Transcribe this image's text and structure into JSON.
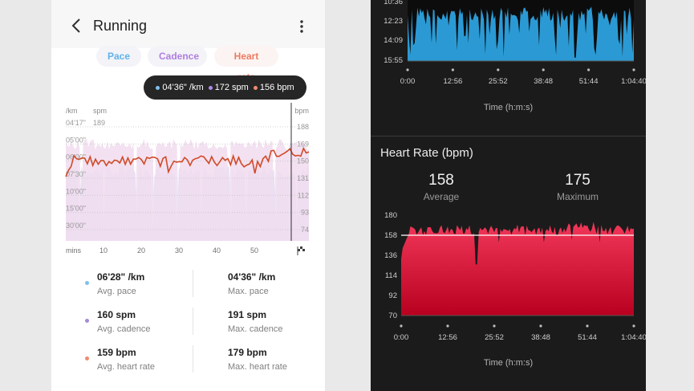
{
  "left": {
    "title": "Running",
    "tabs": {
      "pace": "Pace",
      "cadence": "Cadence",
      "heart_rate": "Heart rate"
    },
    "tooltip": {
      "pace": "04'36\" /km",
      "cadence": "172 spm",
      "heart_rate": "156 bpm"
    },
    "chart": {
      "left_axis_title": "/km",
      "mid_axis_title": "spm",
      "right_axis_title": "bpm",
      "pace_ticks": [
        "04'17\"",
        "05'00\"",
        "06'00\"",
        "07'30\"",
        "10'00\"",
        "15'00\"",
        "30'00\""
      ],
      "cadence_ticks": [
        "189"
      ],
      "hr_ticks": [
        "188",
        "169",
        "150",
        "131",
        "112",
        "93",
        "74"
      ],
      "x_unit": "mins",
      "x_ticks": [
        "10",
        "20",
        "30",
        "40",
        "50"
      ]
    },
    "stats": [
      {
        "value": "06'28\" /km",
        "label": "Avg. pace",
        "color": "#7ec0ee"
      },
      {
        "value": "04'36\" /km",
        "label": "Max. pace"
      },
      {
        "value": "160 spm",
        "label": "Avg. cadence",
        "color": "#a58ad8"
      },
      {
        "value": "191 spm",
        "label": "Max. cadence"
      },
      {
        "value": "159 bpm",
        "label": "Avg. heart rate",
        "color": "#f08a6e"
      },
      {
        "value": "179 bpm",
        "label": "Max. heart rate"
      }
    ],
    "colors": {
      "pace": "#5fb3ea",
      "cadence": "#b07ee0",
      "heart_rate": "#f07a60",
      "hr_line": "#d04a28"
    }
  },
  "right": {
    "pace_panel": {
      "y_ticks": [
        "10:36",
        "12:23",
        "14:09",
        "15:55"
      ],
      "x_ticks": [
        "0:00",
        "12:56",
        "25:52",
        "38:48",
        "51:44",
        "1:04:40"
      ],
      "x_label": "Time (h:m:s)",
      "color": "#2b9ad4"
    },
    "hr_panel": {
      "title": "Heart Rate (bpm)",
      "average": "158",
      "average_label": "Average",
      "maximum": "175",
      "maximum_label": "Maximum",
      "y_ticks": [
        "180",
        "158",
        "136",
        "114",
        "92",
        "70"
      ],
      "x_ticks": [
        "0:00",
        "12:56",
        "25:52",
        "38:48",
        "51:44",
        "1:04:40"
      ],
      "x_label": "Time (h:m:s)",
      "color": "#e8334f",
      "average_line_value": 158
    }
  }
}
